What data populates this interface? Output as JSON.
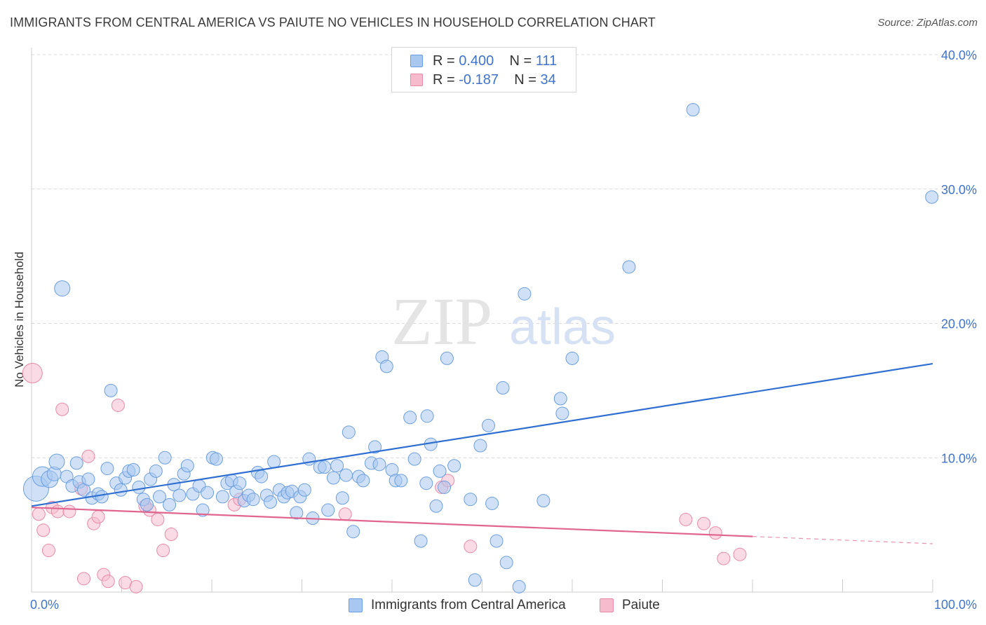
{
  "header": {
    "title": "IMMIGRANTS FROM CENTRAL AMERICA VS PAIUTE NO VEHICLES IN HOUSEHOLD CORRELATION CHART",
    "source": "Source: ZipAtlas.com"
  },
  "watermark": {
    "zip": "ZIP",
    "atlas": "atlas"
  },
  "legend": {
    "rows": [
      {
        "r_label": "R =",
        "r_value": "0.400",
        "n_label": "N =",
        "n_value": "111"
      },
      {
        "r_label": "R =",
        "r_value": "-0.187",
        "n_label": "N =",
        "n_value": "34"
      }
    ],
    "bottom": [
      {
        "label": "Immigrants from Central America"
      },
      {
        "label": "Paiute"
      }
    ]
  },
  "colors": {
    "blue_fill": "#a9c8f0",
    "blue_stroke": "#6b9ee0",
    "blue_line": "#2f6fd1",
    "pink_fill": "#f6bccd",
    "pink_stroke": "#e88aa6",
    "pink_line": "#e0658f",
    "value_text": "#3f74cc",
    "grid": "#d9d9d9"
  },
  "chart_data": {
    "type": "scatter",
    "title": "IMMIGRANTS FROM CENTRAL AMERICA VS PAIUTE NO VEHICLES IN HOUSEHOLD CORRELATION CHART",
    "xlabel": "",
    "ylabel": "No Vehicles in Household",
    "xlim": [
      0,
      100
    ],
    "ylim": [
      0,
      40
    ],
    "x_tick_labels": [
      "0.0%",
      "100.0%"
    ],
    "y_tick_labels": [
      "10.0%",
      "20.0%",
      "30.0%",
      "40.0%"
    ],
    "y_ticks": [
      10,
      20,
      30,
      40
    ],
    "grid": true,
    "legend_position": "top-center",
    "series": [
      {
        "name": "Immigrants from Central America",
        "color": "#a9c8f0",
        "r": 0.4,
        "n": 111,
        "trend": {
          "x": [
            0,
            100
          ],
          "y": [
            6.4,
            17.0
          ],
          "dashed_from": null
        },
        "points": [
          {
            "x": 0.5,
            "y": 7.7,
            "s": 18
          },
          {
            "x": 1.2,
            "y": 8.6,
            "s": 14
          },
          {
            "x": 2.0,
            "y": 8.4,
            "s": 12
          },
          {
            "x": 2.5,
            "y": 8.8,
            "s": 10
          },
          {
            "x": 2.8,
            "y": 9.7,
            "s": 11
          },
          {
            "x": 3.4,
            "y": 22.6,
            "s": 11
          },
          {
            "x": 3.9,
            "y": 8.6,
            "s": 9
          },
          {
            "x": 4.5,
            "y": 7.9,
            "s": 9
          },
          {
            "x": 5.0,
            "y": 9.6,
            "s": 9
          },
          {
            "x": 5.3,
            "y": 8.2,
            "s": 9
          },
          {
            "x": 5.8,
            "y": 7.6,
            "s": 9
          },
          {
            "x": 6.3,
            "y": 8.4,
            "s": 9
          },
          {
            "x": 6.7,
            "y": 7.0,
            "s": 9
          },
          {
            "x": 7.4,
            "y": 7.3,
            "s": 9
          },
          {
            "x": 7.8,
            "y": 7.1,
            "s": 9
          },
          {
            "x": 8.4,
            "y": 9.2,
            "s": 9
          },
          {
            "x": 8.8,
            "y": 15.0,
            "s": 9
          },
          {
            "x": 9.4,
            "y": 8.1,
            "s": 9
          },
          {
            "x": 9.9,
            "y": 7.6,
            "s": 9
          },
          {
            "x": 10.4,
            "y": 8.5,
            "s": 9
          },
          {
            "x": 10.8,
            "y": 9.0,
            "s": 9
          },
          {
            "x": 11.3,
            "y": 9.1,
            "s": 9
          },
          {
            "x": 11.9,
            "y": 7.8,
            "s": 9
          },
          {
            "x": 12.4,
            "y": 6.9,
            "s": 9
          },
          {
            "x": 12.8,
            "y": 6.5,
            "s": 9
          },
          {
            "x": 13.2,
            "y": 8.4,
            "s": 9
          },
          {
            "x": 13.8,
            "y": 9.0,
            "s": 9
          },
          {
            "x": 14.2,
            "y": 7.1,
            "s": 9
          },
          {
            "x": 14.8,
            "y": 10.0,
            "s": 9
          },
          {
            "x": 15.3,
            "y": 6.5,
            "s": 9
          },
          {
            "x": 15.8,
            "y": 8.0,
            "s": 9
          },
          {
            "x": 16.4,
            "y": 7.2,
            "s": 9
          },
          {
            "x": 16.9,
            "y": 8.8,
            "s": 9
          },
          {
            "x": 17.3,
            "y": 9.4,
            "s": 9
          },
          {
            "x": 17.9,
            "y": 7.3,
            "s": 9
          },
          {
            "x": 18.6,
            "y": 7.9,
            "s": 9
          },
          {
            "x": 19.0,
            "y": 6.1,
            "s": 9
          },
          {
            "x": 19.5,
            "y": 7.4,
            "s": 9
          },
          {
            "x": 20.1,
            "y": 10.0,
            "s": 9
          },
          {
            "x": 20.5,
            "y": 9.9,
            "s": 9
          },
          {
            "x": 21.2,
            "y": 7.1,
            "s": 9
          },
          {
            "x": 21.7,
            "y": 8.1,
            "s": 9
          },
          {
            "x": 22.2,
            "y": 8.3,
            "s": 9
          },
          {
            "x": 22.7,
            "y": 7.5,
            "s": 9
          },
          {
            "x": 23.1,
            "y": 8.1,
            "s": 9
          },
          {
            "x": 23.6,
            "y": 6.8,
            "s": 9
          },
          {
            "x": 24.1,
            "y": 7.2,
            "s": 9
          },
          {
            "x": 24.6,
            "y": 6.9,
            "s": 9
          },
          {
            "x": 25.1,
            "y": 8.9,
            "s": 9
          },
          {
            "x": 25.5,
            "y": 8.6,
            "s": 9
          },
          {
            "x": 26.1,
            "y": 7.2,
            "s": 9
          },
          {
            "x": 26.5,
            "y": 6.7,
            "s": 9
          },
          {
            "x": 26.9,
            "y": 9.7,
            "s": 9
          },
          {
            "x": 27.5,
            "y": 7.6,
            "s": 9
          },
          {
            "x": 28.0,
            "y": 7.1,
            "s": 9
          },
          {
            "x": 28.4,
            "y": 7.4,
            "s": 9
          },
          {
            "x": 28.9,
            "y": 7.5,
            "s": 9
          },
          {
            "x": 29.4,
            "y": 5.9,
            "s": 9
          },
          {
            "x": 29.8,
            "y": 7.1,
            "s": 9
          },
          {
            "x": 30.3,
            "y": 7.6,
            "s": 9
          },
          {
            "x": 30.8,
            "y": 9.9,
            "s": 9
          },
          {
            "x": 31.2,
            "y": 5.5,
            "s": 9
          },
          {
            "x": 32.0,
            "y": 9.3,
            "s": 9
          },
          {
            "x": 32.5,
            "y": 9.3,
            "s": 9
          },
          {
            "x": 32.9,
            "y": 6.1,
            "s": 9
          },
          {
            "x": 33.5,
            "y": 8.5,
            "s": 9
          },
          {
            "x": 33.9,
            "y": 9.4,
            "s": 9
          },
          {
            "x": 34.5,
            "y": 7.0,
            "s": 9
          },
          {
            "x": 34.9,
            "y": 8.7,
            "s": 9
          },
          {
            "x": 35.2,
            "y": 11.9,
            "s": 9
          },
          {
            "x": 35.7,
            "y": 4.5,
            "s": 9
          },
          {
            "x": 36.3,
            "y": 8.6,
            "s": 9
          },
          {
            "x": 36.8,
            "y": 8.3,
            "s": 9
          },
          {
            "x": 37.7,
            "y": 9.6,
            "s": 9
          },
          {
            "x": 38.1,
            "y": 10.8,
            "s": 9
          },
          {
            "x": 38.6,
            "y": 9.5,
            "s": 9
          },
          {
            "x": 38.9,
            "y": 17.5,
            "s": 9
          },
          {
            "x": 39.4,
            "y": 16.8,
            "s": 9
          },
          {
            "x": 40.0,
            "y": 9.1,
            "s": 9
          },
          {
            "x": 40.4,
            "y": 8.3,
            "s": 9
          },
          {
            "x": 41.0,
            "y": 8.3,
            "s": 9
          },
          {
            "x": 42.0,
            "y": 13.0,
            "s": 9
          },
          {
            "x": 42.5,
            "y": 9.9,
            "s": 9
          },
          {
            "x": 43.2,
            "y": 3.8,
            "s": 9
          },
          {
            "x": 43.9,
            "y": 13.1,
            "s": 9
          },
          {
            "x": 43.8,
            "y": 8.1,
            "s": 9
          },
          {
            "x": 44.3,
            "y": 11.0,
            "s": 9
          },
          {
            "x": 44.9,
            "y": 6.4,
            "s": 9
          },
          {
            "x": 45.3,
            "y": 9.0,
            "s": 9
          },
          {
            "x": 45.8,
            "y": 7.8,
            "s": 9
          },
          {
            "x": 46.1,
            "y": 17.4,
            "s": 9
          },
          {
            "x": 46.9,
            "y": 9.4,
            "s": 9
          },
          {
            "x": 48.7,
            "y": 6.9,
            "s": 9
          },
          {
            "x": 49.2,
            "y": 0.9,
            "s": 9
          },
          {
            "x": 49.8,
            "y": 10.9,
            "s": 9
          },
          {
            "x": 50.7,
            "y": 12.4,
            "s": 9
          },
          {
            "x": 51.1,
            "y": 6.6,
            "s": 9
          },
          {
            "x": 51.6,
            "y": 3.8,
            "s": 9
          },
          {
            "x": 52.3,
            "y": 15.2,
            "s": 9
          },
          {
            "x": 52.7,
            "y": 2.2,
            "s": 9
          },
          {
            "x": 54.1,
            "y": 0.4,
            "s": 9
          },
          {
            "x": 54.7,
            "y": 22.2,
            "s": 9
          },
          {
            "x": 56.8,
            "y": 6.8,
            "s": 9
          },
          {
            "x": 58.7,
            "y": 14.4,
            "s": 9
          },
          {
            "x": 58.9,
            "y": 13.3,
            "s": 9
          },
          {
            "x": 60.0,
            "y": 17.4,
            "s": 9
          },
          {
            "x": 66.3,
            "y": 24.2,
            "s": 9
          },
          {
            "x": 73.4,
            "y": 35.9,
            "s": 9
          },
          {
            "x": 99.9,
            "y": 29.4,
            "s": 9
          }
        ]
      },
      {
        "name": "Paiute",
        "color": "#f6bccd",
        "r": -0.187,
        "n": 34,
        "trend": {
          "x": [
            0,
            100
          ],
          "y": [
            6.3,
            3.6
          ],
          "dashed_from": 80
        },
        "points": [
          {
            "x": 0.1,
            "y": 16.3,
            "s": 14
          },
          {
            "x": 0.8,
            "y": 5.8,
            "s": 9
          },
          {
            "x": 1.3,
            "y": 4.6,
            "s": 9
          },
          {
            "x": 1.9,
            "y": 3.1,
            "s": 9
          },
          {
            "x": 2.3,
            "y": 6.3,
            "s": 9
          },
          {
            "x": 2.9,
            "y": 6.0,
            "s": 9
          },
          {
            "x": 3.4,
            "y": 13.6,
            "s": 9
          },
          {
            "x": 4.2,
            "y": 6.0,
            "s": 9
          },
          {
            "x": 5.5,
            "y": 7.7,
            "s": 9
          },
          {
            "x": 5.8,
            "y": 1.0,
            "s": 9
          },
          {
            "x": 6.3,
            "y": 10.1,
            "s": 9
          },
          {
            "x": 6.9,
            "y": 5.1,
            "s": 9
          },
          {
            "x": 7.4,
            "y": 5.6,
            "s": 9
          },
          {
            "x": 8.0,
            "y": 1.3,
            "s": 9
          },
          {
            "x": 8.5,
            "y": 0.8,
            "s": 9
          },
          {
            "x": 9.6,
            "y": 13.9,
            "s": 9
          },
          {
            "x": 10.4,
            "y": 0.7,
            "s": 9
          },
          {
            "x": 11.6,
            "y": 0.4,
            "s": 9
          },
          {
            "x": 12.6,
            "y": 6.4,
            "s": 9
          },
          {
            "x": 13.1,
            "y": 6.1,
            "s": 9
          },
          {
            "x": 14.0,
            "y": 5.4,
            "s": 9
          },
          {
            "x": 14.6,
            "y": 3.1,
            "s": 9
          },
          {
            "x": 15.5,
            "y": 4.3,
            "s": 9
          },
          {
            "x": 22.5,
            "y": 6.5,
            "s": 9
          },
          {
            "x": 23.1,
            "y": 6.9,
            "s": 9
          },
          {
            "x": 34.8,
            "y": 5.8,
            "s": 9
          },
          {
            "x": 45.5,
            "y": 7.8,
            "s": 9
          },
          {
            "x": 46.2,
            "y": 8.3,
            "s": 9
          },
          {
            "x": 48.7,
            "y": 3.4,
            "s": 9
          },
          {
            "x": 72.6,
            "y": 5.4,
            "s": 9
          },
          {
            "x": 74.6,
            "y": 5.1,
            "s": 9
          },
          {
            "x": 75.9,
            "y": 4.4,
            "s": 9
          },
          {
            "x": 76.8,
            "y": 2.5,
            "s": 9
          },
          {
            "x": 78.6,
            "y": 2.8,
            "s": 9
          }
        ]
      }
    ]
  }
}
